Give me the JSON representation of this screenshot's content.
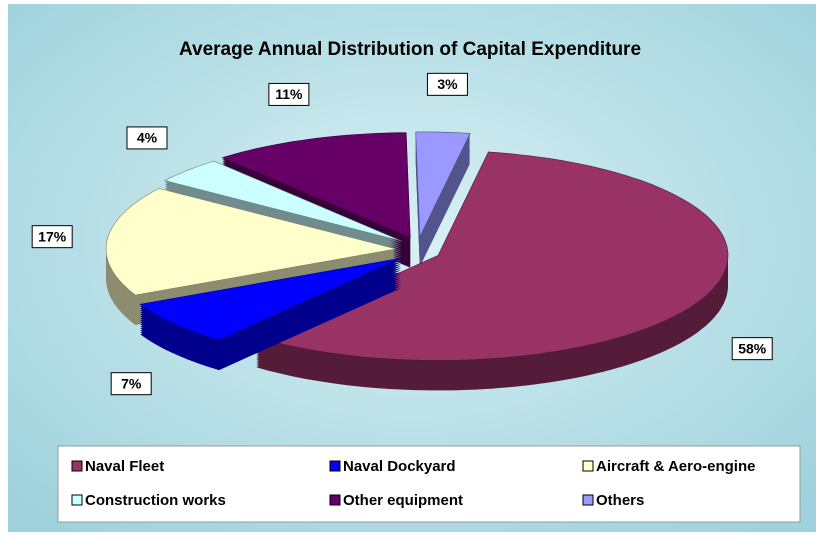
{
  "chart_data": {
    "type": "pie",
    "title": "Average Annual Distribution of Capital Expenditure",
    "series": [
      {
        "name": "Naval Fleet",
        "color": "#993366"
      },
      {
        "name": "Naval Dockyard",
        "color": "#0000ff"
      },
      {
        "name": "Aircraft & Aero-engine",
        "color": "#ffffcc"
      },
      {
        "name": "Construction works",
        "color": "#ccffff"
      },
      {
        "name": "Other equipment",
        "color": "#660066"
      },
      {
        "name": "Others",
        "color": "#9999ff"
      }
    ],
    "values": [
      58,
      7,
      17,
      4,
      11,
      3
    ],
    "value_labels": [
      "58%",
      "7%",
      "17%",
      "4%",
      "11%",
      "3%"
    ],
    "legend": "bottom"
  }
}
